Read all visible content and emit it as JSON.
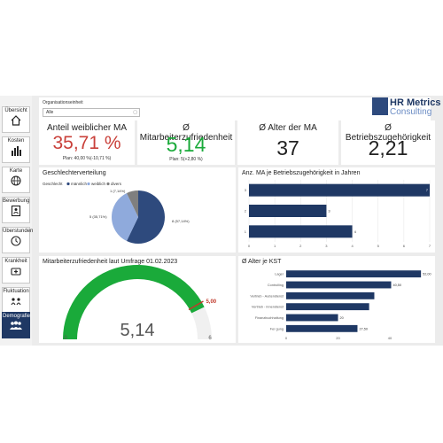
{
  "sidebar": {
    "items": [
      {
        "label": "Übersicht",
        "icon": "home-icon"
      },
      {
        "label": "Kosten",
        "icon": "bar-chart-icon"
      },
      {
        "label": "Karte",
        "icon": "globe-icon"
      },
      {
        "label": "Bewerbung",
        "icon": "document-person-icon"
      },
      {
        "label": "Überstunden",
        "icon": "clock-icon"
      },
      {
        "label": "Krankheit",
        "icon": "medical-icon"
      },
      {
        "label": "Fluktuation",
        "icon": "fluctuation-icon"
      },
      {
        "label": "Demografie",
        "icon": "people-icon"
      }
    ],
    "active": "Demografie"
  },
  "filter": {
    "label": "Organisationseinheit",
    "value": "Alle"
  },
  "logo": {
    "top": "HR Metrics",
    "bottom": "Consulting"
  },
  "kpis": {
    "female_share": {
      "title": "Anteil weiblicher MA",
      "value": "35,71 %",
      "plan": "Plan: 40,00 %(-10,71 %)"
    },
    "satisfaction": {
      "title": "Ø Mitarbeiterzufriedenheit",
      "value": "5,14",
      "plan": "Plan: 5(+2,80 %)"
    },
    "age": {
      "title": "Ø Alter der MA",
      "value": "37"
    },
    "tenure": {
      "title": "Ø Betriebszugehörigkeit",
      "value": "2,21"
    }
  },
  "colors": {
    "navy": "#1f3864",
    "blue": "#2e4a7d",
    "light_blue": "#8faadc",
    "gray": "#7f7f7f",
    "green": "#1aaa3a",
    "red": "#c0392b",
    "kpi_red": "#c9403a"
  },
  "gender_chart": {
    "title": "Geschlechterverteilung",
    "legend_title": "Geschlecht",
    "chart_data": {
      "type": "pie",
      "series": [
        {
          "name": "männlich",
          "value": 8,
          "label": "8 (57,14%)"
        },
        {
          "name": "weiblich",
          "value": 5,
          "label": "5 (35,71%)"
        },
        {
          "name": "divers",
          "value": 1,
          "label": "1 (7,14%)"
        }
      ]
    }
  },
  "tenure_chart": {
    "title": "Anz. MA je Betriebszugehörigkeit in Jahren",
    "chart_data": {
      "type": "bar",
      "orientation": "horizontal",
      "categories": [
        "3",
        "2",
        "1"
      ],
      "values": [
        7,
        3,
        4
      ],
      "xlim": [
        0,
        7
      ],
      "xticks": [
        "0",
        "1",
        "2",
        "3",
        "4",
        "5",
        "6",
        "7"
      ]
    }
  },
  "gauge_chart": {
    "title": "Mitarbeiterzufriedenheit laut Umfrage 01.02.2023",
    "chart_data": {
      "type": "gauge",
      "value": 5.14,
      "value_label": "5,14",
      "target": 5,
      "target_label": "5,00",
      "min": 0,
      "min_label": "0",
      "max": 6,
      "max_label": "6"
    }
  },
  "age_chart": {
    "title": "Ø Alter je KST",
    "chart_data": {
      "type": "bar",
      "orientation": "horizontal",
      "categories": [
        "Lager",
        "Controlling",
        "Vertrieb - Außendienst",
        "Vertrieb - Innendienst",
        "Finanzbuchhaltung",
        "Fer gung"
      ],
      "values": [
        52.0,
        40.5,
        34,
        32,
        20,
        27.5
      ],
      "value_labels": [
        "52,00",
        "40,50",
        "",
        "",
        "20",
        "27,50"
      ],
      "xticks": [
        "0",
        "20",
        "40"
      ],
      "xlim": [
        0,
        54
      ]
    }
  }
}
